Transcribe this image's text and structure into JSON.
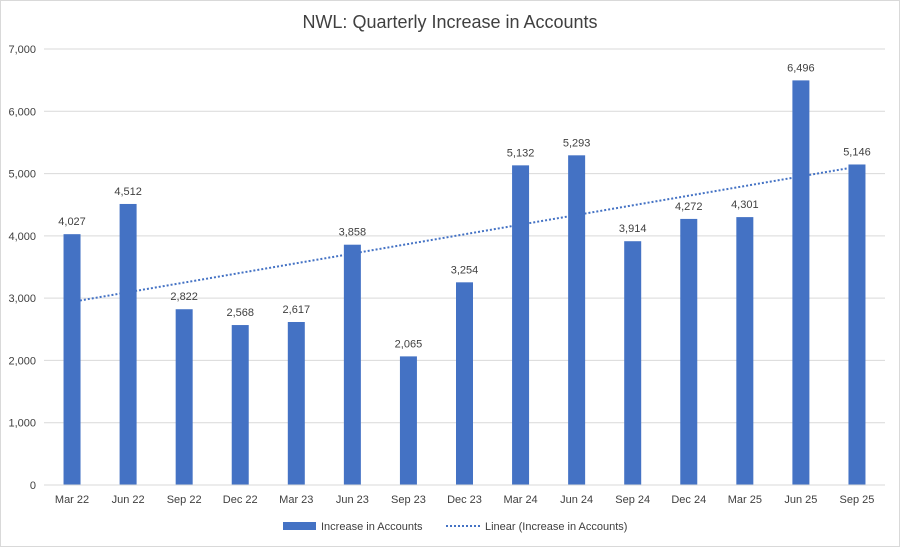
{
  "chart_data": {
    "type": "bar",
    "title": "NWL: Quarterly Increase in Accounts",
    "xlabel": "",
    "ylabel": "",
    "ylim": [
      0,
      7000
    ],
    "yticks": [
      0,
      1000,
      2000,
      3000,
      4000,
      5000,
      6000,
      7000
    ],
    "ytick_labels": [
      "0",
      "1,000",
      "2,000",
      "3,000",
      "4,000",
      "5,000",
      "6,000",
      "7,000"
    ],
    "grid": true,
    "categories": [
      "Mar 22",
      "Jun 22",
      "Sep 22",
      "Dec 22",
      "Mar 23",
      "Jun 23",
      "Sep 23",
      "Dec 23",
      "Mar 24",
      "Jun 24",
      "Sep 24",
      "Dec 24",
      "Mar 25",
      "Jun 25",
      "Sep 25"
    ],
    "series": [
      {
        "name": "Increase in Accounts",
        "color": "#4472c4",
        "values": [
          4027,
          4512,
          2822,
          2568,
          2617,
          3858,
          2065,
          3254,
          5132,
          5293,
          3914,
          4272,
          4301,
          6496,
          5146
        ],
        "value_labels": [
          "4,027",
          "4,512",
          "2,822",
          "2,568",
          "2,617",
          "3,858",
          "2,065",
          "3,254",
          "5,132",
          "5,293",
          "3,914",
          "4,272",
          "4,301",
          "6,496",
          "5,146"
        ]
      }
    ],
    "trendline": {
      "name": "Linear (Increase in Accounts)",
      "type": "linear",
      "color": "#4472c4",
      "style": "dotted",
      "start_value": 2940,
      "end_value": 5110
    },
    "legend": {
      "placement": "bottom-center",
      "entries": [
        "Increase in Accounts",
        "Linear (Increase in Accounts)"
      ]
    }
  }
}
